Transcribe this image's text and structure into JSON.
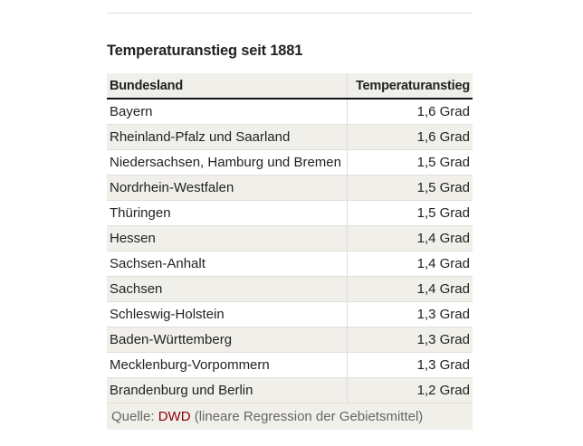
{
  "title": "Temperaturanstieg seit 1881",
  "columns": [
    "Bundesland",
    "Temperaturanstieg"
  ],
  "rows": [
    {
      "state": "Bayern",
      "value": "1,6 Grad"
    },
    {
      "state": "Rheinland-Pfalz und Saarland",
      "value": "1,6 Grad"
    },
    {
      "state": "Niedersachsen, Hamburg und Bremen",
      "value": "1,5 Grad"
    },
    {
      "state": "Nordrhein-Westfalen",
      "value": "1,5 Grad"
    },
    {
      "state": "Thüringen",
      "value": "1,5 Grad"
    },
    {
      "state": "Hessen",
      "value": "1,4 Grad"
    },
    {
      "state": "Sachsen-Anhalt",
      "value": "1,4 Grad"
    },
    {
      "state": "Sachsen",
      "value": "1,4 Grad"
    },
    {
      "state": "Schleswig-Holstein",
      "value": "1,3 Grad"
    },
    {
      "state": "Baden-Württemberg",
      "value": "1,3 Grad"
    },
    {
      "state": "Mecklenburg-Vorpommern",
      "value": "1,3 Grad"
    },
    {
      "state": "Brandenburg und Berlin",
      "value": "1,2 Grad"
    }
  ],
  "source": {
    "prefix": "Quelle: ",
    "link": "DWD",
    "suffix": " (lineare Regression der Gebietsmittel)"
  }
}
